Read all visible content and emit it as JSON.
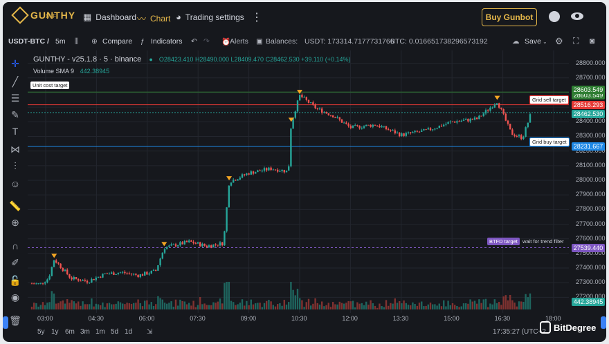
{
  "brand": {
    "name": "GUNTHY",
    "sub": "DeFi"
  },
  "nav": {
    "dashboard": "Dashboard",
    "chart": "Chart",
    "trading_settings": "Trading settings"
  },
  "buy_button": "Buy Gunbot",
  "toolbar": {
    "pair": "USDT-BTC /",
    "interval": "5m",
    "compare": "Compare",
    "indicators": "Indicators",
    "alerts": "Alerts",
    "balances": "Balances:",
    "usdt": "USDT: 173314.7177731766",
    "btc": "BTC: 0.016651738296573192",
    "save": "Save"
  },
  "legend": {
    "title": "GUNTHY - v25.1.8 · 5 · binance",
    "o": "O28423.410",
    "h": "H28490.000",
    "l": "L28409.470",
    "c": "C28462.530",
    "chg": "+39.110 (+0.14%)",
    "volume_label": "Volume SMA 9",
    "volume_value": "442.38945"
  },
  "annotations": {
    "unit_cost": "Unit cost target",
    "grid_sell": "Grid sell target",
    "grid_buy": "Grid buy target",
    "btfd": "BTFD target",
    "trend": "wait for trend filter"
  },
  "price_tags": {
    "unit_cost_a": "28603.549",
    "unit_cost_b": "28603.549",
    "grid_sell": "28516.293",
    "last": "28462.530",
    "grid_buy": "28231.667",
    "btfd": "27539.440",
    "volume": "442.38945"
  },
  "colors": {
    "up": "#26a69a",
    "down": "#ef5350",
    "accent": "#e6b84a",
    "unit_cost": "#2e7d32",
    "grid_sell": "#e53935",
    "grid_buy": "#1e88e5",
    "btfd": "#7e57c2"
  },
  "chart_data": {
    "type": "candlestick",
    "y_ticks": [
      "28800.000",
      "28700.000",
      "28600.000",
      "28500.000",
      "28400.000",
      "28300.000",
      "28200.000",
      "28100.000",
      "28000.000",
      "27900.000",
      "27800.000",
      "27700.000",
      "27600.000",
      "27500.000",
      "27400.000",
      "27300.000",
      "27200.000"
    ],
    "x_ticks": [
      "03:00",
      "04:30",
      "06:00",
      "07:30",
      "09:00",
      "10:30",
      "12:00",
      "13:30",
      "15:00",
      "16:30",
      "18:00"
    ],
    "ylim": [
      27150,
      28850
    ],
    "levels": {
      "unit_cost": 28603.549,
      "grid_sell": 28516.293,
      "last": 28462.53,
      "grid_buy": 28231.667,
      "btfd": 27539.44
    },
    "series": [
      {
        "x": "02:20",
        "y": 27300
      },
      {
        "x": "02:50",
        "y": 27290
      },
      {
        "x": "03:05",
        "y": 27330
      },
      {
        "x": "03:15",
        "y": 27460
      },
      {
        "x": "03:45",
        "y": 27330
      },
      {
        "x": "04:15",
        "y": 27310
      },
      {
        "x": "04:45",
        "y": 27360
      },
      {
        "x": "05:15",
        "y": 27370
      },
      {
        "x": "05:45",
        "y": 27350
      },
      {
        "x": "06:15",
        "y": 27380
      },
      {
        "x": "06:30",
        "y": 27540
      },
      {
        "x": "07:15",
        "y": 27580
      },
      {
        "x": "07:45",
        "y": 27550
      },
      {
        "x": "08:15",
        "y": 27570
      },
      {
        "x": "08:25",
        "y": 27990
      },
      {
        "x": "09:00",
        "y": 28050
      },
      {
        "x": "09:40",
        "y": 28080
      },
      {
        "x": "10:10",
        "y": 28060
      },
      {
        "x": "10:15",
        "y": 28390
      },
      {
        "x": "10:30",
        "y": 28580
      },
      {
        "x": "11:00",
        "y": 28490
      },
      {
        "x": "11:30",
        "y": 28440
      },
      {
        "x": "12:00",
        "y": 28360
      },
      {
        "x": "12:45",
        "y": 28380
      },
      {
        "x": "13:30",
        "y": 28310
      },
      {
        "x": "14:15",
        "y": 28340
      },
      {
        "x": "15:00",
        "y": 28400
      },
      {
        "x": "15:45",
        "y": 28420
      },
      {
        "x": "16:20",
        "y": 28540
      },
      {
        "x": "16:45",
        "y": 28320
      },
      {
        "x": "17:05",
        "y": 28290
      },
      {
        "x": "17:20",
        "y": 28460
      }
    ]
  },
  "bottom": {
    "ranges": [
      "5y",
      "1y",
      "6m",
      "3m",
      "1m",
      "5d",
      "1d"
    ],
    "clock": "17:35:27 (UTC+2"
  },
  "watermark": "BitDegree"
}
